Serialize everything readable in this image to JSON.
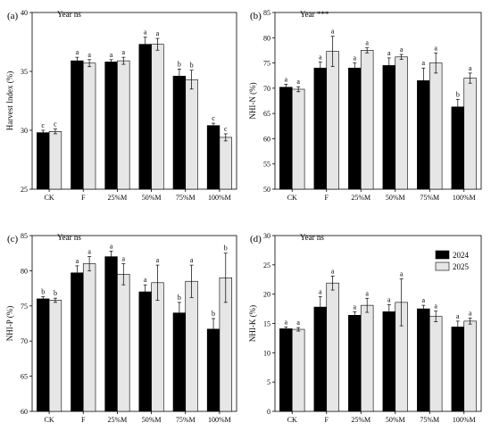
{
  "colors": {
    "series_2024": "#000000",
    "series_2025": "#e6e6e6",
    "bar_edge": "#000000"
  },
  "legend": {
    "items": [
      {
        "label": "2024",
        "color": "#000000"
      },
      {
        "label": "2025",
        "color": "#e6e6e6"
      }
    ]
  },
  "chart_data": [
    {
      "type": "bar",
      "panel_label": "(a)",
      "annotation": "Year ns",
      "ylabel": "Harvest Index (%)",
      "categories": [
        "CK",
        "F",
        "25%M",
        "50%M",
        "75%M",
        "100%M"
      ],
      "ylim": [
        25,
        40
      ],
      "yticks": [
        25,
        30,
        35,
        40
      ],
      "series": [
        {
          "name": "2024",
          "values": [
            29.8,
            35.9,
            35.8,
            37.3,
            34.6,
            30.4
          ],
          "errors": [
            0.2,
            0.3,
            0.2,
            0.6,
            0.6,
            0.2
          ],
          "letters": [
            "c",
            "a",
            "a",
            "a",
            "b",
            "c"
          ]
        },
        {
          "name": "2025",
          "values": [
            29.9,
            35.7,
            35.9,
            37.3,
            34.3,
            29.4
          ],
          "errors": [
            0.2,
            0.3,
            0.3,
            0.5,
            0.8,
            0.3
          ],
          "letters": [
            "c",
            "a",
            "a",
            "a",
            "b",
            "c"
          ]
        }
      ]
    },
    {
      "type": "bar",
      "panel_label": "(b)",
      "annotation": "Year ***",
      "ylabel": "NHI-N (%)",
      "categories": [
        "CK",
        "F",
        "25%M",
        "50%M",
        "75%M",
        "100%M"
      ],
      "ylim": [
        50,
        85
      ],
      "yticks": [
        50,
        55,
        60,
        65,
        70,
        75,
        80,
        85
      ],
      "series": [
        {
          "name": "2024",
          "values": [
            70.2,
            74.0,
            74.0,
            74.5,
            71.5,
            66.3
          ],
          "errors": [
            0.6,
            1.2,
            1.0,
            1.5,
            2.5,
            1.5
          ],
          "letters": [
            "a",
            "a",
            "a",
            "a",
            "a",
            "b"
          ]
        },
        {
          "name": "2025",
          "values": [
            69.8,
            77.3,
            77.5,
            76.2,
            75.0,
            72.0
          ],
          "errors": [
            0.5,
            3.0,
            0.5,
            0.5,
            2.0,
            1.0
          ],
          "letters": [
            "a",
            "a",
            "a",
            "a",
            "a",
            "a"
          ]
        }
      ]
    },
    {
      "type": "bar",
      "panel_label": "(c)",
      "annotation": "Year ns",
      "ylabel": "NHI-P (%)",
      "categories": [
        "CK",
        "F",
        "25%M",
        "50%M",
        "75%M",
        "100%M"
      ],
      "ylim": [
        60,
        85
      ],
      "yticks": [
        60,
        65,
        70,
        75,
        80,
        85
      ],
      "series": [
        {
          "name": "2024",
          "values": [
            76.0,
            79.7,
            82.0,
            77.0,
            74.0,
            71.7
          ],
          "errors": [
            0.3,
            1.0,
            0.8,
            1.0,
            1.5,
            1.5
          ],
          "letters": [
            "b",
            "a",
            "a",
            "a",
            "b",
            "b"
          ]
        },
        {
          "name": "2025",
          "values": [
            75.8,
            81.0,
            79.5,
            78.3,
            78.5,
            79.0
          ],
          "errors": [
            0.3,
            1.0,
            1.5,
            2.5,
            2.3,
            3.5
          ],
          "letters": [
            "b",
            "a",
            "a",
            "a",
            "a",
            "b"
          ]
        }
      ]
    },
    {
      "type": "bar",
      "panel_label": "(d)",
      "annotation": "Year ns",
      "ylabel": "NHI-K (%)",
      "categories": [
        "CK",
        "F",
        "25%M",
        "50%M",
        "75%M",
        "100%M"
      ],
      "ylim": [
        0,
        30
      ],
      "yticks": [
        0,
        5,
        10,
        15,
        20,
        25,
        30
      ],
      "series": [
        {
          "name": "2024",
          "values": [
            14.1,
            17.8,
            16.4,
            17.0,
            17.5,
            14.4
          ],
          "errors": [
            0.3,
            1.8,
            0.6,
            1.2,
            0.6,
            1.0
          ],
          "letters": [
            "a",
            "a",
            "a",
            "a",
            "a",
            "a"
          ]
        },
        {
          "name": "2025",
          "values": [
            14.0,
            21.9,
            18.1,
            18.6,
            16.2,
            15.4
          ],
          "errors": [
            0.3,
            1.2,
            1.2,
            4.0,
            0.9,
            0.5
          ],
          "letters": [
            "a",
            "a",
            "a",
            "a",
            "a",
            "a"
          ]
        }
      ]
    }
  ]
}
